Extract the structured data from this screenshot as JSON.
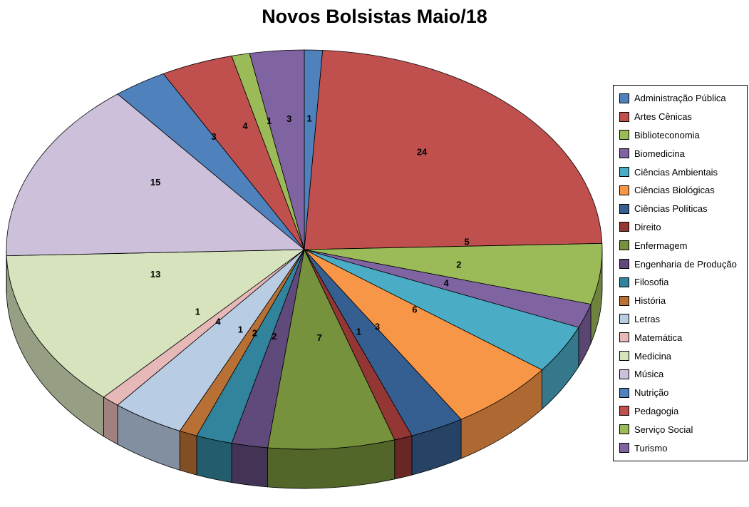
{
  "chart_data": {
    "type": "pie",
    "style": "3d",
    "title": "Novos Bolsistas Maio/18",
    "direction": "clockwise",
    "start_angle_deg": 0,
    "legend_position": "right",
    "data_labels": "values",
    "total": 102,
    "categories": [
      "Administração Pública",
      "Artes Cênicas",
      "Biblioteconomia",
      "Biomedicina",
      "Ciências Ambientais",
      "Ciências Biológicas",
      "Ciências Políticas",
      "Direito",
      "Enfermagem",
      "Engenharia de Produção",
      "Filosofia",
      "História",
      "Letras",
      "Matemática",
      "Medicina",
      "Música",
      "Nutrição",
      "Pedagogia",
      "Serviço Social",
      "Turismo"
    ],
    "values": [
      1,
      24,
      5,
      2,
      4,
      6,
      3,
      1,
      7,
      2,
      2,
      1,
      4,
      1,
      13,
      15,
      3,
      4,
      1,
      3
    ],
    "colors": [
      "#4F81BD",
      "#C0504D",
      "#9BBB59",
      "#8064A2",
      "#4BACC6",
      "#F79646",
      "#365F91",
      "#943634",
      "#76923C",
      "#604A7B",
      "#31849B",
      "#B97034",
      "#B8CCE4",
      "#E6B8B7",
      "#D6E3BC",
      "#CCC0DA",
      "#4F81BD",
      "#C0504D",
      "#9BBB59",
      "#8064A2"
    ]
  },
  "layout_colors": {
    "background": "#FFFFFF",
    "title_color": "#000000",
    "legend_border": "#000000",
    "slice_border": "#000000",
    "label_color": "#000000"
  }
}
